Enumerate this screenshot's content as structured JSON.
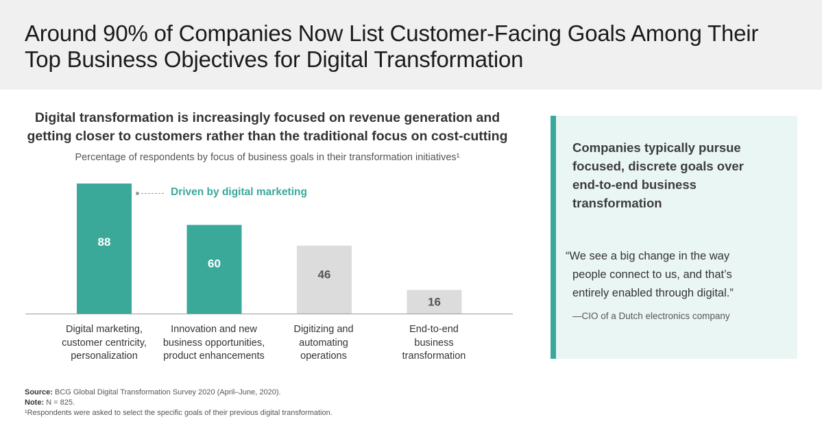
{
  "header": {
    "title_line1": "Around 90% of Companies Now List Customer-Facing Goals Among Their",
    "title_line2": "Top Business Objectives for Digital Transformation"
  },
  "chart_heading": {
    "line1": "Digital transformation is increasingly focused on revenue generation and",
    "line2": "getting closer to customers rather than the traditional focus on cost-cutting"
  },
  "chart_subtitle": "Percentage of respondents by focus of business goals in their transformation initiatives¹",
  "annotation": "Driven by digital marketing",
  "category_labels": [
    [
      "Digital marketing,",
      "customer centricity,",
      "personalization"
    ],
    [
      "Innovation and new",
      "business opportunities,",
      "product enhancements"
    ],
    [
      "Digitizing and",
      "automating",
      "operations"
    ],
    [
      "End-to-end",
      "business",
      "transformation"
    ]
  ],
  "chart_data": {
    "type": "bar",
    "categories": [
      "Digital marketing, customer centricity, personalization",
      "Innovation and new business opportunities, product enhancements",
      "Digitizing and automating operations",
      "End-to-end business transformation"
    ],
    "values": [
      88,
      60,
      46,
      16
    ],
    "data_labels": [
      "88",
      "60",
      "46",
      "16"
    ],
    "bar_colors": [
      "#3aa99a",
      "#3aa99a",
      "#dcdcdc",
      "#dcdcdc"
    ],
    "ylim": [
      0,
      88
    ],
    "grid": false,
    "legend": "none"
  },
  "quote_panel": {
    "heading_lines": [
      "Companies typically pursue",
      "focused, discrete goals over",
      "end-to-end business",
      "transformation"
    ],
    "quote_lines": [
      "“We see a big change in the way",
      "people connect to us, and that’s",
      "entirely enabled through digital.”"
    ],
    "attribution": "—CIO of a Dutch electronics company"
  },
  "footnotes": {
    "source_label": "Source:",
    "source_text": "BCG Global Digital Transformation Survey 2020 (April–June, 2020).",
    "note_label": "Note:",
    "note_text": "N = 825.",
    "footnote1": "¹Respondents were asked to select the specific goals of their previous digital transformation."
  },
  "colors": {
    "accent": "#3aa99a",
    "bar_grey": "#dcdcdc",
    "header_bg": "#f0f0f0",
    "panel_bg": "#eaf6f3"
  }
}
